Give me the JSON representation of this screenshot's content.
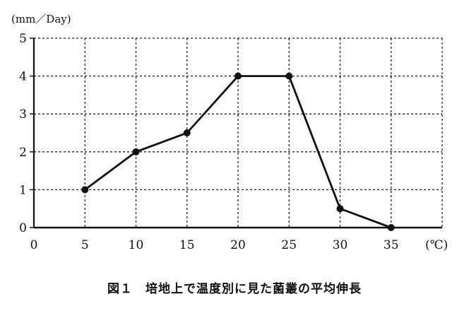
{
  "chart_data": {
    "type": "line",
    "title": "図１　培地上で温度別に見た菌叢の平均伸長",
    "xlabel": "(℃)",
    "ylabel": "(mm／Day)",
    "x_ticks": [
      "0",
      "5",
      "10",
      "15",
      "20",
      "25",
      "30",
      "35"
    ],
    "y_ticks": [
      "0",
      "1",
      "2",
      "3",
      "4",
      "5"
    ],
    "xlim": [
      0,
      40
    ],
    "ylim": [
      0,
      5
    ],
    "grid": true,
    "grid_style": "dashed",
    "series": [
      {
        "x": [
          5,
          10,
          15,
          20,
          25,
          30,
          35
        ],
        "y": [
          1,
          2,
          2.5,
          4,
          4,
          0.5,
          0
        ]
      }
    ],
    "colors": {
      "line": "#111111",
      "grid": "#222222",
      "axis": "#111111"
    }
  }
}
